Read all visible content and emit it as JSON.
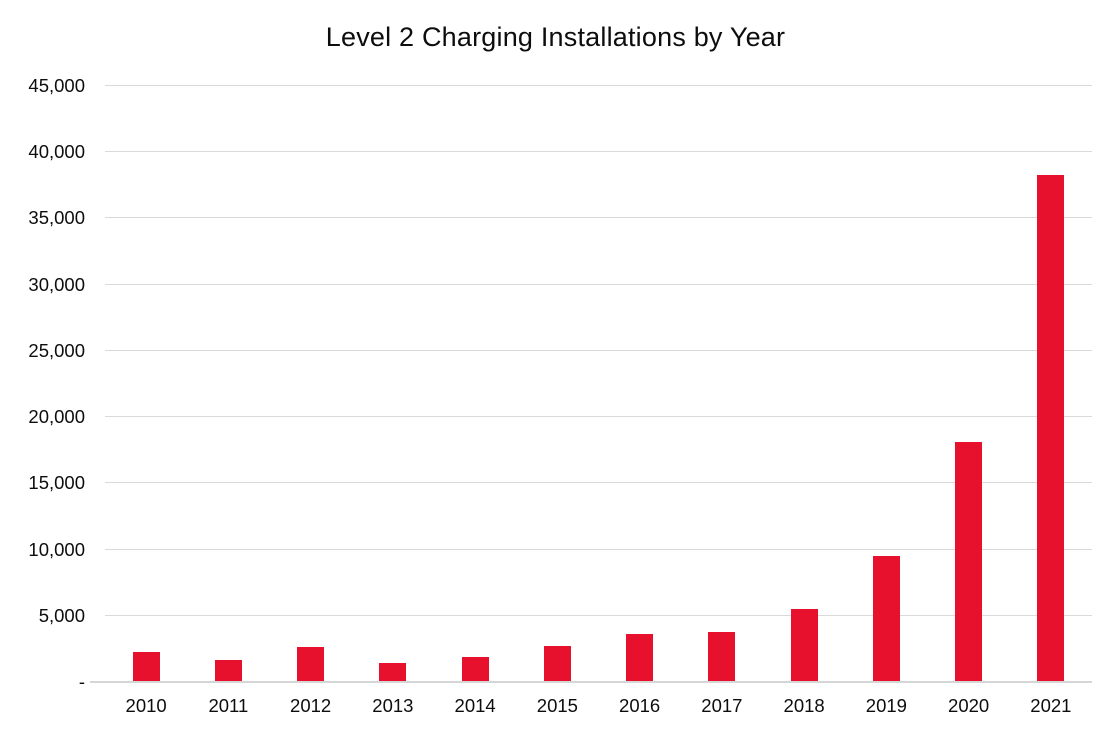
{
  "chart_data": {
    "type": "bar",
    "title": "Level 2 Charging Installations by Year",
    "categories": [
      "2010",
      "2011",
      "2012",
      "2013",
      "2014",
      "2015",
      "2016",
      "2017",
      "2018",
      "2019",
      "2020",
      "2021"
    ],
    "values": [
      2250,
      1700,
      2650,
      1450,
      1900,
      2750,
      3650,
      3750,
      5500,
      9550,
      18100,
      38250
    ],
    "xlabel": "",
    "ylabel": "",
    "ylim": [
      0,
      45000
    ],
    "ytick_step": 5000,
    "ytick_labels_top_to_bottom": [
      "45,000",
      "40,000",
      "35,000",
      "30,000",
      "25,000",
      "20,000",
      "15,000",
      "10,000",
      "5,000",
      "-"
    ],
    "grid": true,
    "legend_position": "none",
    "bar_color": "#E8112D",
    "gridline_color": "#DADADA",
    "axis_line_color": "#D6D6D6",
    "text_color": "#0D0D0D",
    "background_color": "#FFFFFF"
  }
}
